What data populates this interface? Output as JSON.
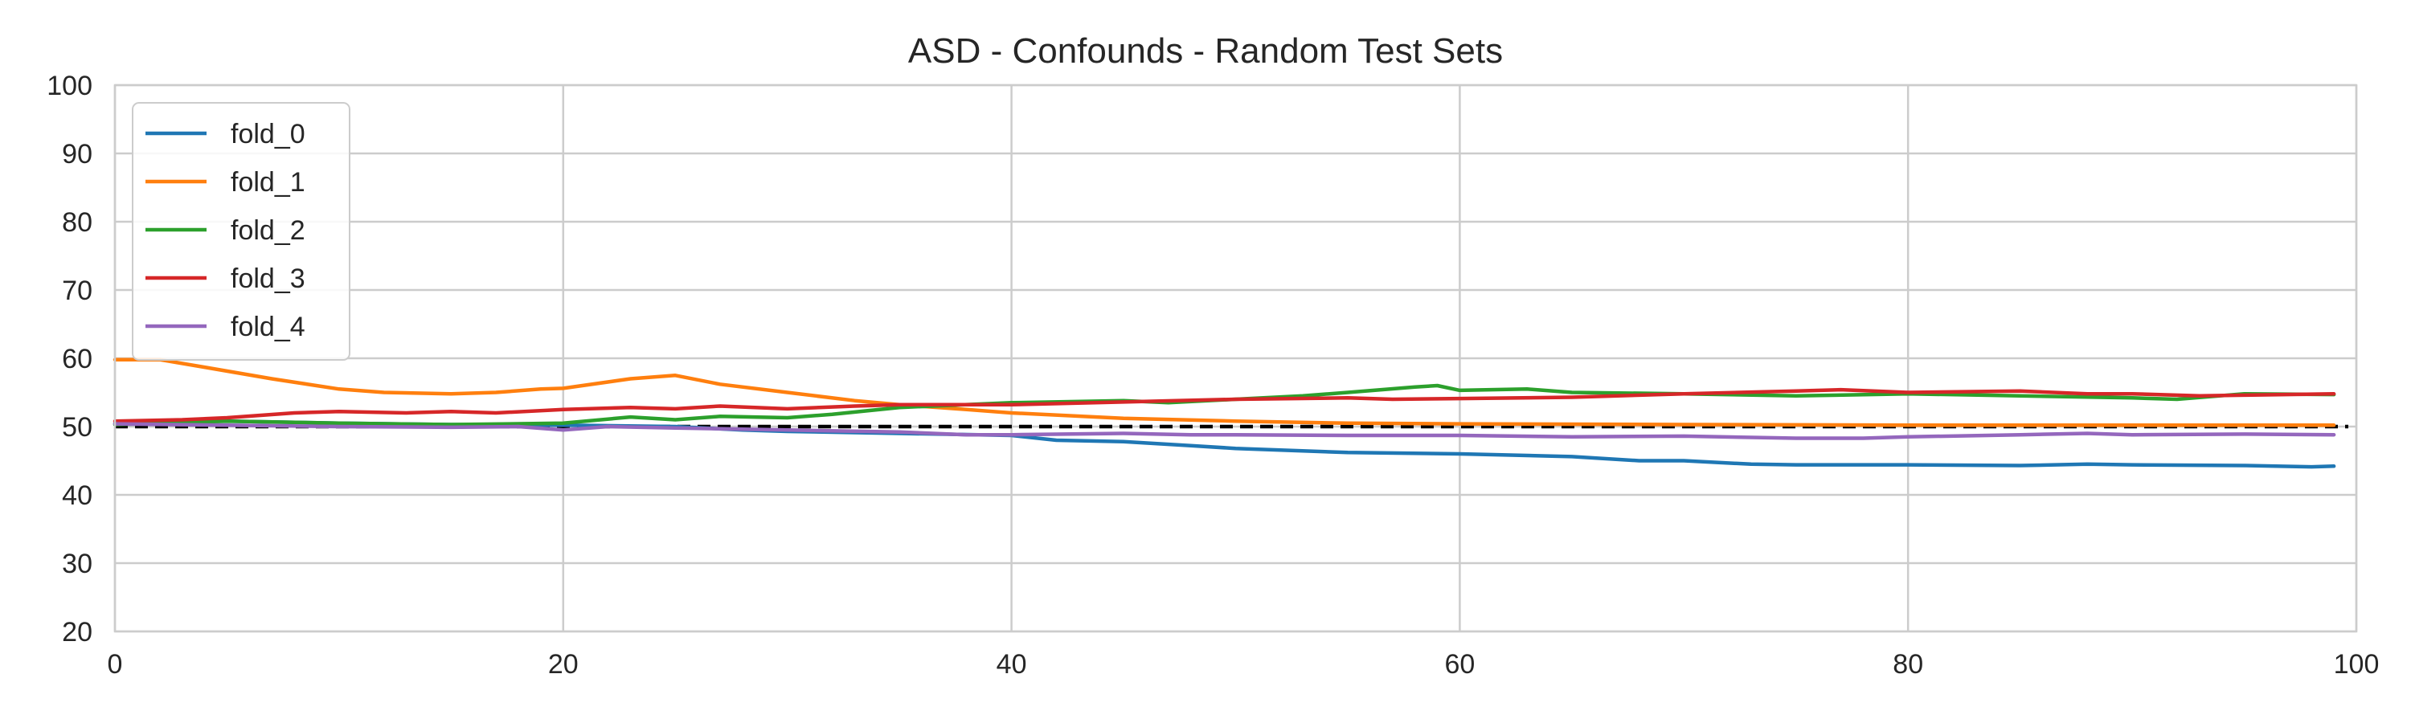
{
  "chart_data": {
    "type": "line",
    "title": "ASD - Confounds - Random Test Sets",
    "xlabel": "",
    "ylabel": "",
    "xlim": [
      0,
      100
    ],
    "ylim": [
      20,
      100
    ],
    "xticks": [
      0,
      20,
      40,
      60,
      80,
      100
    ],
    "yticks": [
      20,
      30,
      40,
      50,
      60,
      70,
      80,
      90,
      100
    ],
    "grid": true,
    "legend_position": "top-left",
    "reference_line": {
      "y": 50,
      "style": "dashed",
      "color": "#000000"
    },
    "series": [
      {
        "name": "fold_0",
        "color": "#1f77b4",
        "points": [
          [
            0,
            50.5
          ],
          [
            5,
            50.8
          ],
          [
            10,
            50.5
          ],
          [
            15,
            50.3
          ],
          [
            20,
            50.2
          ],
          [
            25,
            50.0
          ],
          [
            28,
            49.5
          ],
          [
            30,
            49.3
          ],
          [
            35,
            49.0
          ],
          [
            40,
            48.7
          ],
          [
            42,
            48.0
          ],
          [
            45,
            47.8
          ],
          [
            48,
            47.2
          ],
          [
            50,
            46.8
          ],
          [
            55,
            46.2
          ],
          [
            60,
            46.0
          ],
          [
            65,
            45.6
          ],
          [
            68,
            45.0
          ],
          [
            70,
            45.0
          ],
          [
            73,
            44.5
          ],
          [
            75,
            44.4
          ],
          [
            80,
            44.4
          ],
          [
            85,
            44.3
          ],
          [
            88,
            44.5
          ],
          [
            90,
            44.4
          ],
          [
            95,
            44.3
          ],
          [
            98,
            44.1
          ],
          [
            99,
            44.2
          ]
        ]
      },
      {
        "name": "fold_1",
        "color": "#ff7f0e",
        "points": [
          [
            0,
            59.8
          ],
          [
            2,
            59.8
          ],
          [
            4,
            58.7
          ],
          [
            7,
            57.0
          ],
          [
            10,
            55.5
          ],
          [
            12,
            55.0
          ],
          [
            15,
            54.8
          ],
          [
            17,
            55.0
          ],
          [
            19,
            55.5
          ],
          [
            20,
            55.6
          ],
          [
            23,
            57.0
          ],
          [
            25,
            57.5
          ],
          [
            27,
            56.2
          ],
          [
            30,
            55.0
          ],
          [
            33,
            53.8
          ],
          [
            35,
            53.2
          ],
          [
            38,
            52.5
          ],
          [
            40,
            52.0
          ],
          [
            45,
            51.2
          ],
          [
            50,
            50.8
          ],
          [
            55,
            50.5
          ],
          [
            60,
            50.4
          ],
          [
            70,
            50.3
          ],
          [
            80,
            50.2
          ],
          [
            90,
            50.2
          ],
          [
            99,
            50.2
          ]
        ]
      },
      {
        "name": "fold_2",
        "color": "#2ca02c",
        "points": [
          [
            0,
            50.3
          ],
          [
            5,
            50.8
          ],
          [
            10,
            50.5
          ],
          [
            15,
            50.3
          ],
          [
            20,
            50.5
          ],
          [
            23,
            51.4
          ],
          [
            25,
            51.0
          ],
          [
            27,
            51.5
          ],
          [
            30,
            51.3
          ],
          [
            32,
            51.8
          ],
          [
            35,
            52.8
          ],
          [
            40,
            53.5
          ],
          [
            45,
            53.8
          ],
          [
            47,
            53.5
          ],
          [
            50,
            54.0
          ],
          [
            53,
            54.5
          ],
          [
            55,
            55.0
          ],
          [
            58,
            55.8
          ],
          [
            59,
            56.0
          ],
          [
            60,
            55.3
          ],
          [
            63,
            55.5
          ],
          [
            65,
            55.0
          ],
          [
            70,
            54.8
          ],
          [
            75,
            54.5
          ],
          [
            80,
            54.8
          ],
          [
            85,
            54.5
          ],
          [
            90,
            54.2
          ],
          [
            92,
            54.0
          ],
          [
            95,
            54.8
          ],
          [
            99,
            54.7
          ]
        ]
      },
      {
        "name": "fold_3",
        "color": "#d62728",
        "points": [
          [
            0,
            50.8
          ],
          [
            3,
            51.0
          ],
          [
            5,
            51.3
          ],
          [
            8,
            52.0
          ],
          [
            10,
            52.2
          ],
          [
            13,
            52.0
          ],
          [
            15,
            52.2
          ],
          [
            17,
            52.0
          ],
          [
            20,
            52.5
          ],
          [
            23,
            52.8
          ],
          [
            25,
            52.6
          ],
          [
            27,
            53.0
          ],
          [
            30,
            52.6
          ],
          [
            33,
            53.0
          ],
          [
            35,
            53.2
          ],
          [
            40,
            53.2
          ],
          [
            45,
            53.6
          ],
          [
            50,
            54.0
          ],
          [
            55,
            54.2
          ],
          [
            57,
            54.0
          ],
          [
            60,
            54.1
          ],
          [
            65,
            54.3
          ],
          [
            70,
            54.8
          ],
          [
            75,
            55.2
          ],
          [
            77,
            55.4
          ],
          [
            80,
            55.0
          ],
          [
            85,
            55.2
          ],
          [
            88,
            54.8
          ],
          [
            90,
            54.8
          ],
          [
            93,
            54.5
          ],
          [
            95,
            54.6
          ],
          [
            99,
            54.8
          ]
        ]
      },
      {
        "name": "fold_4",
        "color": "#9467bd",
        "points": [
          [
            0,
            50.4
          ],
          [
            5,
            50.2
          ],
          [
            10,
            50.0
          ],
          [
            15,
            49.9
          ],
          [
            18,
            50.0
          ],
          [
            20,
            49.5
          ],
          [
            22,
            50.0
          ],
          [
            25,
            49.8
          ],
          [
            30,
            49.5
          ],
          [
            35,
            49.2
          ],
          [
            38,
            48.8
          ],
          [
            40,
            48.8
          ],
          [
            45,
            49.0
          ],
          [
            48,
            48.8
          ],
          [
            50,
            48.8
          ],
          [
            55,
            48.7
          ],
          [
            60,
            48.7
          ],
          [
            65,
            48.5
          ],
          [
            70,
            48.6
          ],
          [
            75,
            48.3
          ],
          [
            78,
            48.3
          ],
          [
            80,
            48.5
          ],
          [
            85,
            48.8
          ],
          [
            88,
            49.0
          ],
          [
            90,
            48.8
          ],
          [
            95,
            48.9
          ],
          [
            99,
            48.8
          ]
        ]
      }
    ]
  }
}
